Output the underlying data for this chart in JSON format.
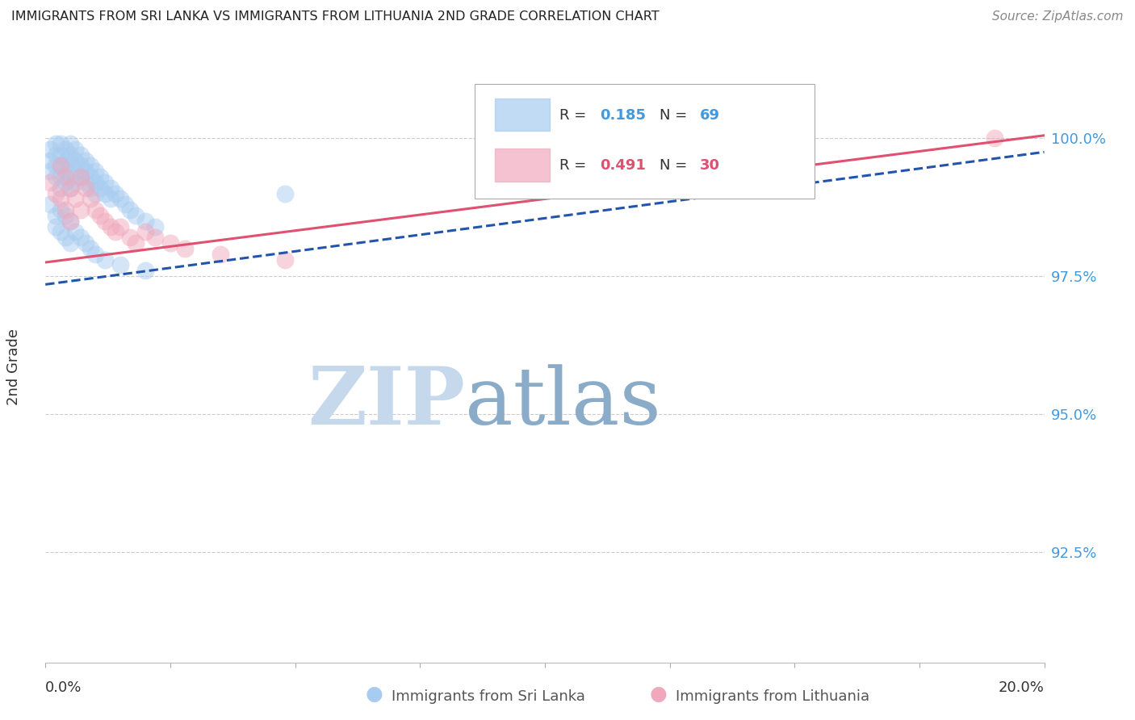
{
  "title": "IMMIGRANTS FROM SRI LANKA VS IMMIGRANTS FROM LITHUANIA 2ND GRADE CORRELATION CHART",
  "source": "Source: ZipAtlas.com",
  "ylabel": "2nd Grade",
  "ytick_labels": [
    "100.0%",
    "97.5%",
    "95.0%",
    "92.5%"
  ],
  "ytick_values": [
    1.0,
    0.975,
    0.95,
    0.925
  ],
  "xlim": [
    0.0,
    0.2
  ],
  "ylim": [
    0.905,
    1.012
  ],
  "sri_lanka_R": 0.185,
  "sri_lanka_N": 69,
  "lithuania_R": 0.491,
  "lithuania_N": 30,
  "sri_lanka_color": "#A8CCF0",
  "lithuania_color": "#F0A8BC",
  "sri_lanka_line_color": "#2255AA",
  "lithuania_line_color": "#E05070",
  "background_color": "#FFFFFF",
  "grid_color": "#CCCCCC",
  "title_color": "#222222",
  "right_axis_color": "#4499DD",
  "watermark_zip_color": "#C5D8EC",
  "watermark_atlas_color": "#8AACC8",
  "sri_lanka_x": [
    0.001,
    0.001,
    0.001,
    0.002,
    0.002,
    0.002,
    0.002,
    0.003,
    0.003,
    0.003,
    0.003,
    0.003,
    0.004,
    0.004,
    0.004,
    0.004,
    0.005,
    0.005,
    0.005,
    0.005,
    0.005,
    0.006,
    0.006,
    0.006,
    0.006,
    0.007,
    0.007,
    0.007,
    0.008,
    0.008,
    0.008,
    0.009,
    0.009,
    0.009,
    0.01,
    0.01,
    0.01,
    0.011,
    0.011,
    0.012,
    0.012,
    0.013,
    0.013,
    0.014,
    0.015,
    0.016,
    0.017,
    0.018,
    0.02,
    0.022,
    0.001,
    0.002,
    0.002,
    0.003,
    0.003,
    0.004,
    0.004,
    0.005,
    0.005,
    0.006,
    0.007,
    0.008,
    0.009,
    0.01,
    0.012,
    0.015,
    0.02,
    0.048,
    0.12
  ],
  "sri_lanka_y": [
    0.998,
    0.996,
    0.994,
    0.999,
    0.997,
    0.995,
    0.993,
    0.999,
    0.997,
    0.995,
    0.993,
    0.991,
    0.998,
    0.996,
    0.994,
    0.992,
    0.999,
    0.997,
    0.995,
    0.993,
    0.991,
    0.998,
    0.996,
    0.994,
    0.992,
    0.997,
    0.995,
    0.993,
    0.996,
    0.994,
    0.992,
    0.995,
    0.993,
    0.991,
    0.994,
    0.992,
    0.99,
    0.993,
    0.991,
    0.992,
    0.99,
    0.991,
    0.989,
    0.99,
    0.989,
    0.988,
    0.987,
    0.986,
    0.985,
    0.984,
    0.988,
    0.986,
    0.984,
    0.987,
    0.983,
    0.986,
    0.982,
    0.985,
    0.981,
    0.983,
    0.982,
    0.981,
    0.98,
    0.979,
    0.978,
    0.977,
    0.976,
    0.99,
    1.0
  ],
  "lithuania_x": [
    0.001,
    0.002,
    0.003,
    0.003,
    0.004,
    0.004,
    0.005,
    0.005,
    0.006,
    0.007,
    0.007,
    0.008,
    0.009,
    0.01,
    0.011,
    0.012,
    0.013,
    0.014,
    0.015,
    0.017,
    0.018,
    0.02,
    0.022,
    0.025,
    0.028,
    0.035,
    0.048,
    0.12,
    0.15,
    0.19
  ],
  "lithuania_y": [
    0.992,
    0.99,
    0.995,
    0.989,
    0.993,
    0.987,
    0.991,
    0.985,
    0.989,
    0.993,
    0.987,
    0.991,
    0.989,
    0.987,
    0.986,
    0.985,
    0.984,
    0.983,
    0.984,
    0.982,
    0.981,
    0.983,
    0.982,
    0.981,
    0.98,
    0.979,
    0.978,
    0.999,
    1.0,
    1.0
  ],
  "sl_line_x": [
    0.0,
    0.2
  ],
  "sl_line_y": [
    0.9735,
    0.9975
  ],
  "lt_line_x": [
    0.0,
    0.2
  ],
  "lt_line_y": [
    0.9775,
    1.0005
  ]
}
